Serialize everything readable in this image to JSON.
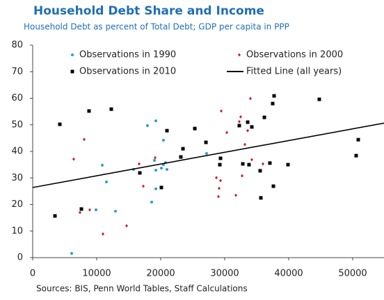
{
  "chart_data": {
    "type": "scatter",
    "title": "Household Debt Share and Income",
    "subtitle": "Household Debt as percent of Total Debt; GDP per capita in PPP",
    "source": "Sources: BIS, Penn World Tables, Staff Calculations",
    "xlim": [
      0,
      55000
    ],
    "xticks": [
      0,
      10000,
      20000,
      30000,
      40000,
      50000
    ],
    "ylim": [
      0,
      80
    ],
    "yticks": [
      0,
      10,
      20,
      30,
      40,
      50,
      60,
      70,
      80
    ],
    "legend": "upper center",
    "series": [
      {
        "name": "Observations in 1990",
        "color": "#2a9fc4",
        "marker": "circle",
        "x": [
          10870,
          11520,
          9890,
          12930,
          6090,
          15760,
          17930,
          19240,
          19020,
          19240,
          19240,
          18590,
          20430,
          20430,
          20110,
          20980,
          20760,
          27170
        ],
        "values": [
          34.8,
          28.5,
          18,
          17.5,
          1.6,
          33.2,
          49.7,
          51.5,
          36.6,
          32.9,
          25.9,
          20.9,
          44.2,
          35,
          33.7,
          33.2,
          35.8,
          39.2
        ]
      },
      {
        "name": "Observations in 2000",
        "color": "#c81e2a",
        "marker": "diamond",
        "x": [
          6410,
          8040,
          7390,
          8910,
          10980,
          14670,
          16630,
          17280,
          19130,
          28700,
          29460,
          30330,
          29350,
          29130,
          29020,
          32280,
          32500,
          33150,
          33590,
          34020,
          32720,
          34240,
          31740,
          35980
        ],
        "values": [
          37.1,
          44.5,
          17,
          18,
          8.9,
          12,
          35.3,
          26.9,
          37.6,
          30.1,
          55.2,
          47.1,
          29,
          26.1,
          23,
          51.2,
          53,
          42.6,
          47.8,
          59.9,
          30.8,
          36.9,
          23.5,
          35.3
        ]
      },
      {
        "name": "Observations in 2010",
        "color": "#000000",
        "marker": "square",
        "x": [
          3480,
          4240,
          7610,
          8800,
          12280,
          16740,
          20980,
          20110,
          23150,
          23480,
          25330,
          27070,
          29240,
          29350,
          32830,
          32280,
          33590,
          34240,
          35540,
          37060,
          36200,
          37500,
          37720,
          37610,
          35650,
          39890,
          50540,
          50870,
          44780,
          33800
        ],
        "values": [
          15.7,
          50.2,
          18.3,
          55.2,
          55.9,
          31.9,
          47.8,
          26.4,
          37.9,
          41,
          48.6,
          43.4,
          35,
          37.4,
          35.3,
          49.7,
          51,
          49.2,
          32.7,
          35.6,
          52.8,
          58,
          60.9,
          26.9,
          22.5,
          35,
          38.4,
          44.4,
          59.6,
          35
        ]
      },
      {
        "name": "Fitted Line (all years)",
        "color": "#000000",
        "marker": "line",
        "x": [
          0,
          55000
        ],
        "values": [
          26.4,
          50.7
        ]
      }
    ]
  }
}
